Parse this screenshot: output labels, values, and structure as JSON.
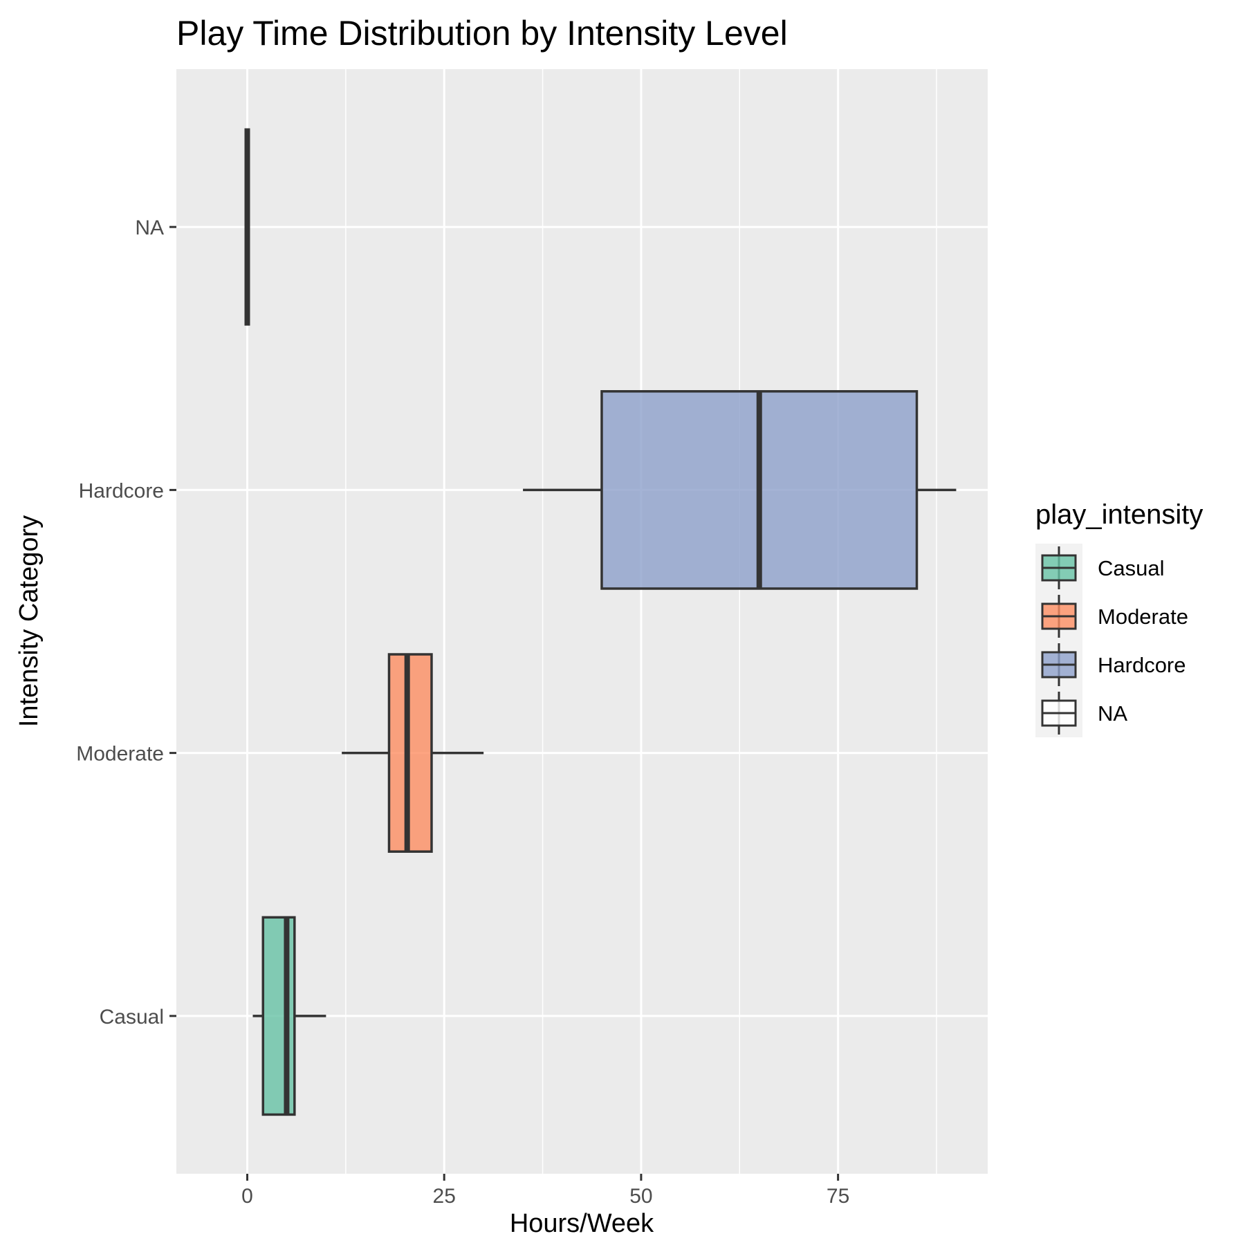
{
  "chart_data": {
    "type": "boxplot",
    "orientation": "horizontal",
    "title": "Play Time Distribution by Intensity Level",
    "xlabel": "Hours/Week",
    "ylabel": "Intensity Category",
    "xlim": [
      -9,
      94
    ],
    "x_ticks": [
      0,
      25,
      50,
      75
    ],
    "x_tick_labels": [
      "0",
      "25",
      "50",
      "75"
    ],
    "categories": [
      "Casual",
      "Moderate",
      "Hardcore",
      "NA"
    ],
    "grid": true,
    "legend": {
      "title": "play_intensity",
      "position": "right",
      "entries": [
        "Casual",
        "Moderate",
        "Hardcore",
        "NA"
      ]
    },
    "series": [
      {
        "category": "Casual",
        "whisker_low": 0.7,
        "q1": 2,
        "median": 5,
        "q3": 6,
        "whisker_high": 10,
        "color": "#66c2a5"
      },
      {
        "category": "Moderate",
        "whisker_low": 12,
        "q1": 18,
        "median": 20.3,
        "q3": 23.4,
        "whisker_high": 30,
        "color": "#fc8d62"
      },
      {
        "category": "Hardcore",
        "whisker_low": 35,
        "q1": 45,
        "median": 65,
        "q3": 85,
        "whisker_high": 90,
        "color": "#8da0cb"
      },
      {
        "category": "NA",
        "whisker_low": 0,
        "q1": 0,
        "median": 0,
        "q3": 0,
        "whisker_high": 0,
        "color": "#ffffff"
      }
    ],
    "colors": {
      "panel_background": "#ebebeb",
      "grid": "#ffffff",
      "outline": "#333333",
      "legend_key_background": "#f2f2f2"
    }
  }
}
